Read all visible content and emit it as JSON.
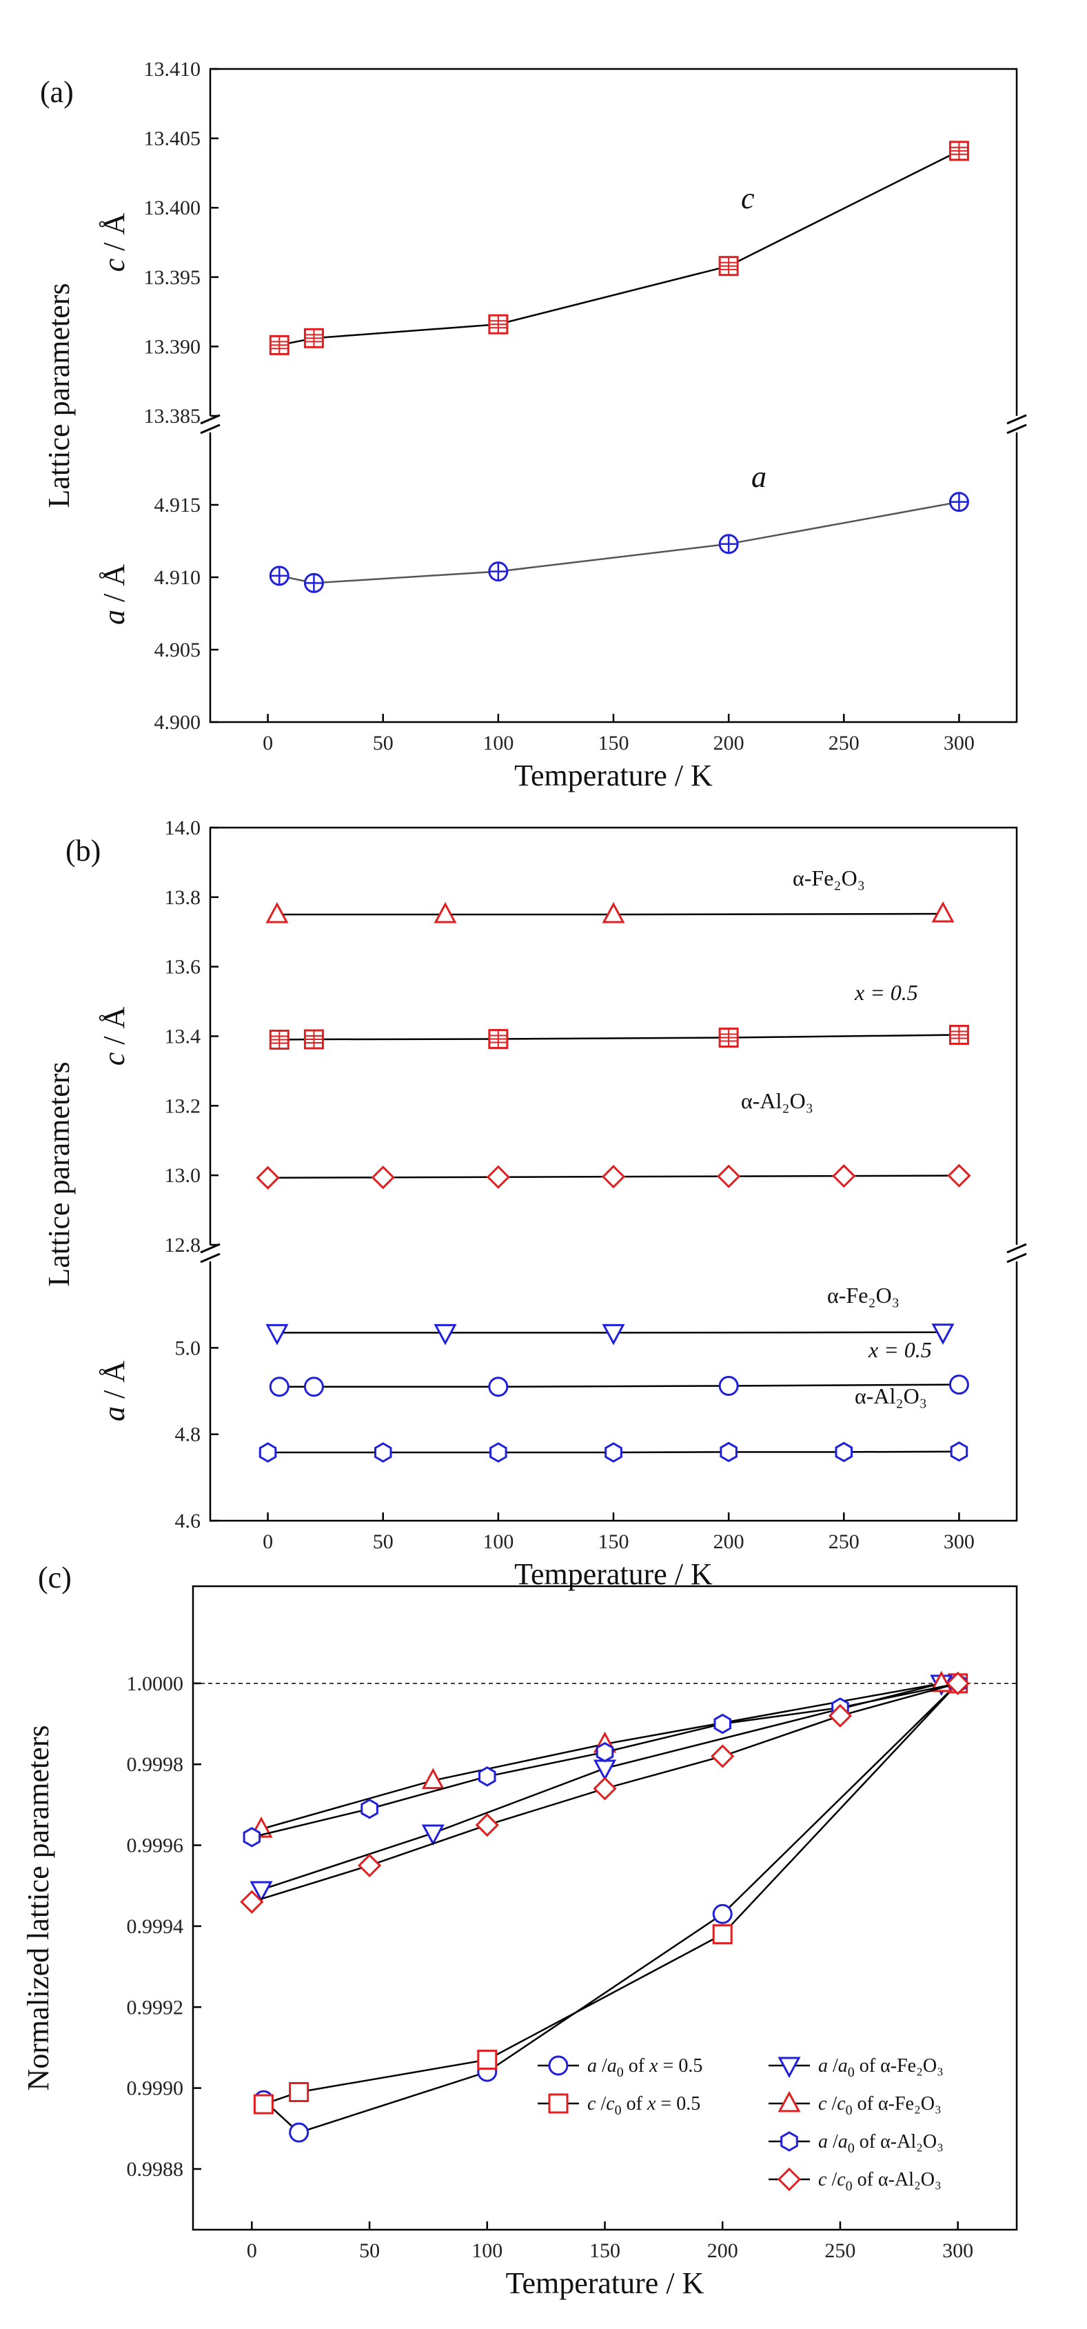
{
  "chart_data": [
    {
      "panel": "(a)",
      "type": "line",
      "xlabel": "Temperature / K",
      "ylabel": "Lattice parameters",
      "xlim": [
        -25,
        325
      ],
      "x_ticks": [
        "0",
        "50",
        "100",
        "150",
        "200",
        "250",
        "300"
      ],
      "upper_axis": {
        "label_italic": "c",
        "label_rest": " / Å",
        "ylim": [
          13.385,
          13.41
        ],
        "ticks": [
          "13.385",
          "13.390",
          "13.395",
          "13.400",
          "13.405",
          "13.410"
        ]
      },
      "lower_axis": {
        "label_italic": "a",
        "label_rest": " / Å",
        "ylim": [
          4.9,
          4.92
        ],
        "ticks": [
          "4.900",
          "4.905",
          "4.910",
          "4.915"
        ]
      },
      "annotations": {
        "c": "c",
        "a": "a"
      },
      "series": [
        {
          "name": "c",
          "axis": "upper",
          "color": "#e02020",
          "marker": "square-cross",
          "x": [
            5,
            20,
            100,
            200,
            300
          ],
          "values": [
            13.3901,
            13.3906,
            13.3916,
            13.3958,
            13.4041
          ]
        },
        {
          "name": "a",
          "axis": "lower",
          "color": "#1f1fdc",
          "marker": "circle-cross",
          "x": [
            5,
            20,
            100,
            200,
            300
          ],
          "values": [
            4.9101,
            4.9096,
            4.9104,
            4.9123,
            4.9152
          ]
        }
      ]
    },
    {
      "panel": "(b)",
      "type": "line",
      "xlabel": "Temperature / K",
      "ylabel": "Lattice parameters",
      "xlim": [
        -25,
        325
      ],
      "x_ticks": [
        "0",
        "50",
        "100",
        "150",
        "200",
        "250",
        "300"
      ],
      "upper_axis": {
        "label_italic": "c",
        "label_rest": " / Å",
        "ylim": [
          12.8,
          14.0
        ],
        "ticks": [
          "12.8",
          "13.0",
          "13.2",
          "13.4",
          "13.6",
          "13.8",
          "14.0"
        ]
      },
      "lower_axis": {
        "label_italic": "a",
        "label_rest": " / Å",
        "ylim": [
          4.6,
          5.2
        ],
        "ticks": [
          "4.6",
          "4.8",
          "5.0"
        ]
      },
      "annotations": {
        "fe_upper": "α-Fe₂O₃",
        "x05_upper": "x = 0.5",
        "al_upper": "α-Al₂O₃",
        "fe_lower": "α-Fe₂O₃",
        "x05_lower": "x = 0.5",
        "al_lower": "α-Al₂O₃"
      },
      "series": [
        {
          "name": "c α-Fe2O3",
          "axis": "upper",
          "color": "#e02020",
          "marker": "triangle-up",
          "x": [
            4,
            77,
            150,
            293
          ],
          "values": [
            13.75,
            13.75,
            13.75,
            13.752
          ]
        },
        {
          "name": "c x=0.5",
          "axis": "upper",
          "color": "#e02020",
          "marker": "square-cross",
          "x": [
            5,
            20,
            100,
            200,
            300
          ],
          "values": [
            13.39,
            13.391,
            13.392,
            13.396,
            13.404
          ]
        },
        {
          "name": "c α-Al2O3",
          "axis": "upper",
          "color": "#e02020",
          "marker": "diamond",
          "x": [
            0,
            50,
            100,
            150,
            200,
            250,
            300
          ],
          "values": [
            12.993,
            12.994,
            12.995,
            12.996,
            12.997,
            12.998,
            12.999
          ]
        },
        {
          "name": "a α-Fe2O3",
          "axis": "lower",
          "color": "#1f1fdc",
          "marker": "triangle-down",
          "x": [
            4,
            77,
            150,
            293
          ],
          "values": [
            5.035,
            5.035,
            5.035,
            5.036
          ]
        },
        {
          "name": "a x=0.5",
          "axis": "lower",
          "color": "#1f1fdc",
          "marker": "circle",
          "x": [
            5,
            20,
            100,
            200,
            300
          ],
          "values": [
            4.91,
            4.91,
            4.91,
            4.912,
            4.915
          ]
        },
        {
          "name": "a α-Al2O3",
          "axis": "lower",
          "color": "#1f1fdc",
          "marker": "hexagon",
          "x": [
            0,
            50,
            100,
            150,
            200,
            250,
            300
          ],
          "values": [
            4.758,
            4.758,
            4.758,
            4.758,
            4.759,
            4.759,
            4.76
          ]
        }
      ]
    },
    {
      "panel": "(c)",
      "type": "line",
      "xlabel": "Temperature / K",
      "ylabel": "Normalized lattice parameters",
      "xlim": [
        -25,
        325
      ],
      "x_ticks": [
        "0",
        "50",
        "100",
        "150",
        "200",
        "250",
        "300"
      ],
      "ylim": [
        0.99865,
        1.00024
      ],
      "y_ticks": [
        "0.9988",
        "0.9990",
        "0.9992",
        "0.9994",
        "0.9996",
        "0.9998",
        "1.0000"
      ],
      "y_tick_values": [
        0.9988,
        0.999,
        0.9992,
        0.9994,
        0.9996,
        0.9998,
        1.0
      ],
      "reference_line": 1.0,
      "series": [
        {
          "name": "a/a0 of x = 0.5",
          "legend": [
            "a",
            " /",
            "a",
            "0",
            " of ",
            "x",
            " = 0.5"
          ],
          "color": "#1f1fdc",
          "marker": "circle",
          "x": [
            5,
            20,
            100,
            200,
            300
          ],
          "values": [
            0.99897,
            0.99889,
            0.99904,
            0.99943,
            1.0
          ]
        },
        {
          "name": "c/c0 of x = 0.5",
          "legend": [
            "c",
            " /",
            "c",
            "0",
            " of ",
            "x",
            " = 0.5"
          ],
          "color": "#e02020",
          "marker": "square",
          "x": [
            5,
            20,
            100,
            200,
            300
          ],
          "values": [
            0.99896,
            0.99899,
            0.99907,
            0.99938,
            1.0
          ]
        },
        {
          "name": "a/a0 of α-Fe2O3",
          "legend": [
            "a",
            " /",
            "a",
            "0",
            " of α-Fe₂O₃",
            "",
            ""
          ],
          "color": "#1f1fdc",
          "marker": "triangle-down",
          "x": [
            4,
            77,
            150,
            293
          ],
          "values": [
            0.99949,
            0.99963,
            0.99979,
            1.0
          ]
        },
        {
          "name": "c/c0 of α-Fe2O3",
          "legend": [
            "c",
            " /",
            "c",
            "0",
            " of α-Fe₂O₃",
            "",
            ""
          ],
          "color": "#e02020",
          "marker": "triangle-up",
          "x": [
            4,
            77,
            150,
            293
          ],
          "values": [
            0.99964,
            0.99976,
            0.99985,
            1.0
          ]
        },
        {
          "name": "a/a0 of α-Al2O3",
          "legend": [
            "a",
            " /",
            "a",
            "0",
            " of α-Al₂O₃",
            "",
            ""
          ],
          "color": "#1f1fdc",
          "marker": "hexagon",
          "x": [
            0,
            50,
            100,
            150,
            200,
            250,
            300
          ],
          "values": [
            0.99962,
            0.99969,
            0.99977,
            0.99983,
            0.9999,
            0.99994,
            1.0
          ]
        },
        {
          "name": "c/c0 of α-Al2O3",
          "legend": [
            "c",
            " /",
            "c",
            "0",
            " of α-Al₂O₃",
            "",
            ""
          ],
          "color": "#e02020",
          "marker": "diamond",
          "x": [
            0,
            50,
            100,
            150,
            200,
            250,
            300
          ],
          "values": [
            0.99946,
            0.99955,
            0.99965,
            0.99974,
            0.99982,
            0.99992,
            1.0
          ]
        }
      ]
    }
  ]
}
